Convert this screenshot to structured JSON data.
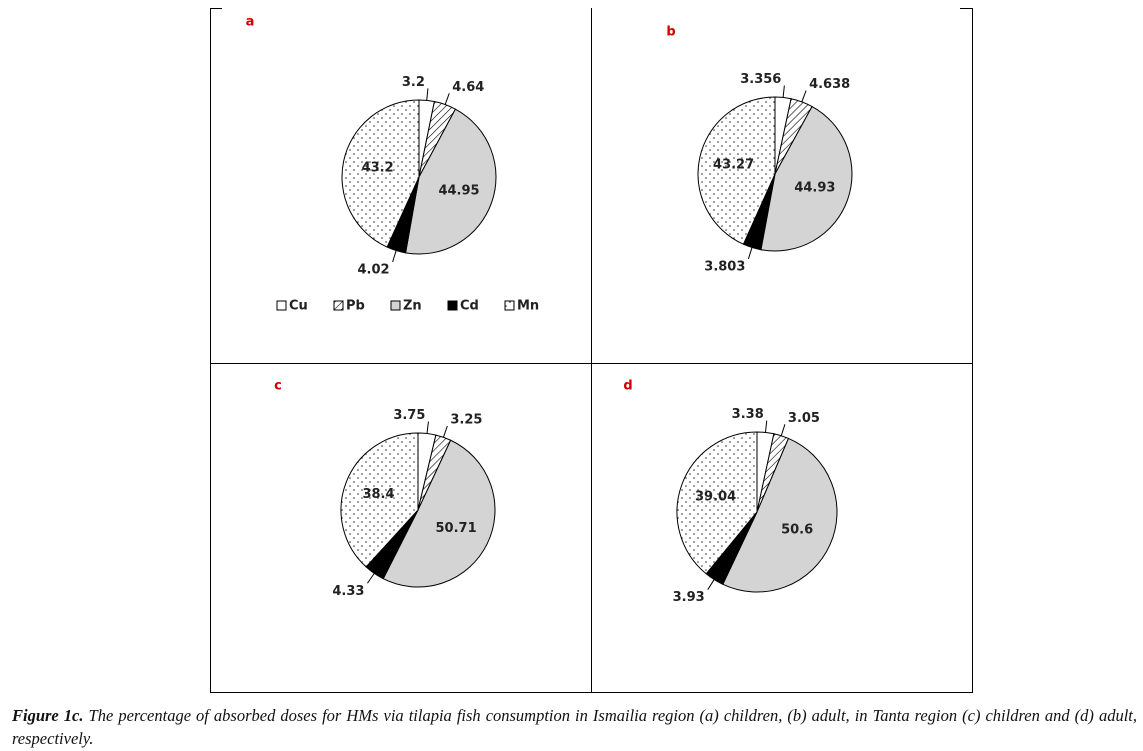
{
  "chart_data": [
    {
      "type": "pie",
      "title": "a",
      "categories": [
        "Cu",
        "Pb",
        "Zn",
        "Cd",
        "Mn"
      ],
      "colors": [
        "#ffffff",
        "hatch",
        "#d4d4d4",
        "#000000",
        "dots"
      ],
      "legend": "bottom",
      "values": [
        3.2,
        4.64,
        44.95,
        4.02,
        43.2
      ]
    },
    {
      "type": "pie",
      "title": "b",
      "values": [
        3.356,
        4.638,
        44.93,
        3.803,
        43.27
      ]
    },
    {
      "type": "pie",
      "title": "c",
      "values": [
        3.75,
        3.25,
        50.71,
        4.33,
        38.4
      ]
    },
    {
      "type": "pie",
      "title": "d",
      "values": [
        3.38,
        3.05,
        50.6,
        3.93,
        39.04
      ]
    }
  ],
  "caption": {
    "label": "Figure 1c.",
    "text": "The percentage of absorbed doses for HMs via tilapia fish consumption in Ismailia region (a) children, (b) adult, in Tanta region (c) children and (d) adult, respectively."
  }
}
